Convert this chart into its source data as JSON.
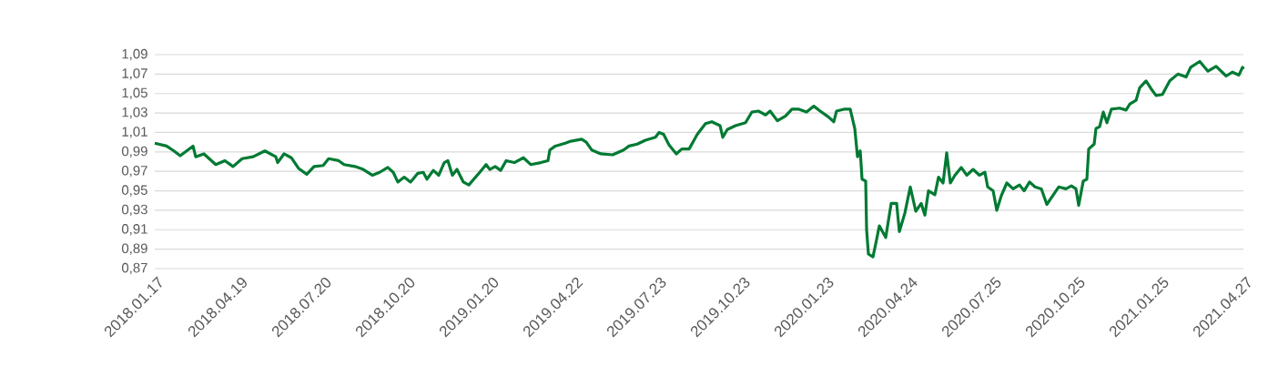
{
  "chart_data": {
    "type": "line",
    "x": [
      "2018-01-17",
      "2018-01-30",
      "2018-02-07",
      "2018-02-14",
      "2018-02-28",
      "2018-03-03",
      "2018-03-12",
      "2018-03-25",
      "2018-04-04",
      "2018-04-13",
      "2018-04-23",
      "2018-05-05",
      "2018-05-18",
      "2018-05-30",
      "2018-06-01",
      "2018-06-08",
      "2018-06-16",
      "2018-06-24",
      "2018-07-03",
      "2018-07-11",
      "2018-07-21",
      "2018-07-27",
      "2018-08-07",
      "2018-08-13",
      "2018-08-25",
      "2018-09-03",
      "2018-09-13",
      "2018-09-21",
      "2018-09-30",
      "2018-10-06",
      "2018-10-11",
      "2018-10-18",
      "2018-10-25",
      "2018-11-02",
      "2018-11-08",
      "2018-11-12",
      "2018-11-19",
      "2018-11-25",
      "2018-12-01",
      "2018-12-05",
      "2018-12-10",
      "2018-12-15",
      "2018-12-22",
      "2018-12-28",
      "2019-01-09",
      "2019-01-16",
      "2019-01-20",
      "2019-01-26",
      "2019-02-01",
      "2019-02-07",
      "2019-02-16",
      "2019-02-26",
      "2019-03-06",
      "2019-03-17",
      "2019-03-25",
      "2019-03-27",
      "2019-04-02",
      "2019-04-13",
      "2019-04-19",
      "2019-05-01",
      "2019-05-06",
      "2019-05-12",
      "2019-05-22",
      "2019-06-04",
      "2019-06-16",
      "2019-06-22",
      "2019-07-01",
      "2019-07-10",
      "2019-07-21",
      "2019-07-25",
      "2019-07-30",
      "2019-08-05",
      "2019-08-13",
      "2019-08-19",
      "2019-08-27",
      "2019-09-05",
      "2019-09-14",
      "2019-09-21",
      "2019-09-30",
      "2019-10-03",
      "2019-10-08",
      "2019-10-17",
      "2019-10-28",
      "2019-11-04",
      "2019-11-11",
      "2019-11-19",
      "2019-11-24",
      "2019-12-02",
      "2019-12-11",
      "2019-12-18",
      "2019-12-25",
      "2020-01-03",
      "2020-01-11",
      "2020-01-18",
      "2020-01-27",
      "2020-02-02",
      "2020-02-05",
      "2020-02-14",
      "2020-02-20",
      "2020-02-25",
      "2020-02-28",
      "2020-03-02",
      "2020-03-04",
      "2020-03-08",
      "2020-03-09",
      "2020-03-11",
      "2020-03-16",
      "2020-03-20",
      "2020-03-23",
      "2020-03-30",
      "2020-04-05",
      "2020-04-11",
      "2020-04-14",
      "2020-04-20",
      "2020-04-26",
      "2020-05-02",
      "2020-05-08",
      "2020-05-12",
      "2020-05-16",
      "2020-05-23",
      "2020-05-27",
      "2020-06-01",
      "2020-06-05",
      "2020-06-09",
      "2020-06-14",
      "2020-06-21",
      "2020-06-27",
      "2020-07-04",
      "2020-07-11",
      "2020-07-17",
      "2020-07-20",
      "2020-07-26",
      "2020-07-30",
      "2020-08-04",
      "2020-08-10",
      "2020-08-17",
      "2020-08-24",
      "2020-08-29",
      "2020-09-04",
      "2020-09-10",
      "2020-09-17",
      "2020-09-23",
      "2020-09-28",
      "2020-10-06",
      "2020-10-14",
      "2020-10-20",
      "2020-10-25",
      "2020-10-28",
      "2020-11-02",
      "2020-11-06",
      "2020-11-08",
      "2020-11-14",
      "2020-11-16",
      "2020-11-20",
      "2020-11-24",
      "2020-11-28",
      "2020-12-03",
      "2020-12-12",
      "2020-12-19",
      "2020-12-23",
      "2020-12-30",
      "2021-01-03",
      "2021-01-10",
      "2021-01-17",
      "2021-01-21",
      "2021-01-28",
      "2021-02-05",
      "2021-02-14",
      "2021-02-23",
      "2021-02-28",
      "2021-03-10",
      "2021-03-19",
      "2021-03-28",
      "2021-04-08",
      "2021-04-15",
      "2021-04-22",
      "2021-04-26",
      "2021-04-27"
    ],
    "series": [
      {
        "color": "#007a33",
        "values": [
          0.999,
          0.996,
          0.991,
          0.986,
          0.996,
          0.985,
          0.988,
          0.977,
          0.981,
          0.975,
          0.983,
          0.985,
          0.991,
          0.985,
          0.979,
          0.988,
          0.984,
          0.973,
          0.967,
          0.975,
          0.976,
          0.983,
          0.981,
          0.977,
          0.975,
          0.972,
          0.966,
          0.969,
          0.974,
          0.969,
          0.959,
          0.964,
          0.959,
          0.968,
          0.969,
          0.962,
          0.971,
          0.966,
          0.979,
          0.981,
          0.966,
          0.972,
          0.959,
          0.956,
          0.969,
          0.977,
          0.972,
          0.975,
          0.971,
          0.981,
          0.979,
          0.984,
          0.977,
          0.979,
          0.981,
          0.992,
          0.996,
          0.999,
          1.001,
          1.003,
          1.0,
          0.992,
          0.988,
          0.987,
          0.992,
          0.996,
          0.998,
          1.002,
          1.005,
          1.01,
          1.008,
          0.997,
          0.988,
          0.993,
          0.993,
          1.008,
          1.019,
          1.021,
          1.017,
          1.005,
          1.013,
          1.017,
          1.02,
          1.031,
          1.032,
          1.028,
          1.032,
          1.022,
          1.027,
          1.034,
          1.034,
          1.031,
          1.037,
          1.032,
          1.026,
          1.021,
          1.032,
          1.034,
          1.034,
          1.014,
          0.985,
          0.991,
          0.962,
          0.96,
          0.91,
          0.885,
          0.882,
          0.9,
          0.914,
          0.902,
          0.937,
          0.937,
          0.908,
          0.927,
          0.954,
          0.929,
          0.937,
          0.925,
          0.95,
          0.946,
          0.964,
          0.958,
          0.989,
          0.958,
          0.966,
          0.974,
          0.966,
          0.972,
          0.966,
          0.969,
          0.954,
          0.95,
          0.93,
          0.945,
          0.958,
          0.952,
          0.956,
          0.95,
          0.959,
          0.954,
          0.952,
          0.936,
          0.943,
          0.954,
          0.952,
          0.955,
          0.952,
          0.935,
          0.96,
          0.962,
          0.993,
          0.998,
          1.014,
          1.016,
          1.031,
          1.02,
          1.034,
          1.035,
          1.033,
          1.039,
          1.043,
          1.056,
          1.063,
          1.053,
          1.048,
          1.049,
          1.063,
          1.07,
          1.067,
          1.077,
          1.083,
          1.073,
          1.078,
          1.068,
          1.072,
          1.069,
          1.077,
          1.075
        ]
      }
    ],
    "xlim": [
      "2018-01-17",
      "2021-04-27"
    ],
    "xticks": [
      {
        "value": "2018-01-17",
        "label": "2018.01.17"
      },
      {
        "value": "2018-04-19",
        "label": "2018.04.19"
      },
      {
        "value": "2018-07-20",
        "label": "2018.07.20"
      },
      {
        "value": "2018-10-20",
        "label": "2018.10.20"
      },
      {
        "value": "2019-01-20",
        "label": "2019.01.20"
      },
      {
        "value": "2019-04-22",
        "label": "2019.04.22"
      },
      {
        "value": "2019-07-23",
        "label": "2019.07.23"
      },
      {
        "value": "2019-10-23",
        "label": "2019.10.23"
      },
      {
        "value": "2020-01-23",
        "label": "2020.01.23"
      },
      {
        "value": "2020-04-24",
        "label": "2020.04.24"
      },
      {
        "value": "2020-07-25",
        "label": "2020.07.25"
      },
      {
        "value": "2020-10-25",
        "label": "2020.10.25"
      },
      {
        "value": "2021-01-25",
        "label": "2021.01.25"
      },
      {
        "value": "2021-04-27",
        "label": "2021.04.27"
      }
    ],
    "ylim": [
      0.87,
      1.09
    ],
    "yticks": [
      {
        "value": 0.87,
        "label": "0,87"
      },
      {
        "value": 0.89,
        "label": "0,89"
      },
      {
        "value": 0.91,
        "label": "0,91"
      },
      {
        "value": 0.93,
        "label": "0,93"
      },
      {
        "value": 0.95,
        "label": "0,95"
      },
      {
        "value": 0.97,
        "label": "0,97"
      },
      {
        "value": 0.99,
        "label": "0,99"
      },
      {
        "value": 1.01,
        "label": "1,01"
      },
      {
        "value": 1.03,
        "label": "1,03"
      },
      {
        "value": 1.05,
        "label": "1,05"
      },
      {
        "value": 1.07,
        "label": "1,07"
      },
      {
        "value": 1.09,
        "label": "1,09"
      }
    ],
    "grid": "y",
    "marker": "none",
    "line_style": "solid"
  }
}
